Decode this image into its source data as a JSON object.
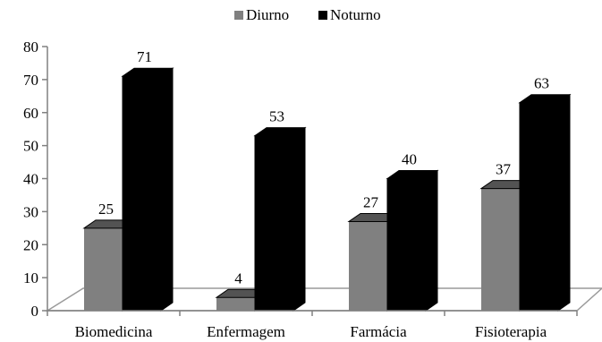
{
  "chart_data": {
    "type": "bar",
    "categories": [
      "Biomedicina",
      "Enfermagem",
      "Farmácia",
      "Fisioterapia"
    ],
    "series": [
      {
        "name": "Diurno",
        "values": [
          25,
          4,
          27,
          37
        ],
        "color": "#808080"
      },
      {
        "name": "Noturno",
        "values": [
          71,
          53,
          40,
          63
        ],
        "color": "#000000"
      }
    ],
    "yticks": [
      0,
      10,
      20,
      30,
      40,
      50,
      60,
      70,
      80
    ],
    "ylim": [
      0,
      80
    ],
    "legend_position": "top",
    "grid": false,
    "style": "3d-column"
  }
}
